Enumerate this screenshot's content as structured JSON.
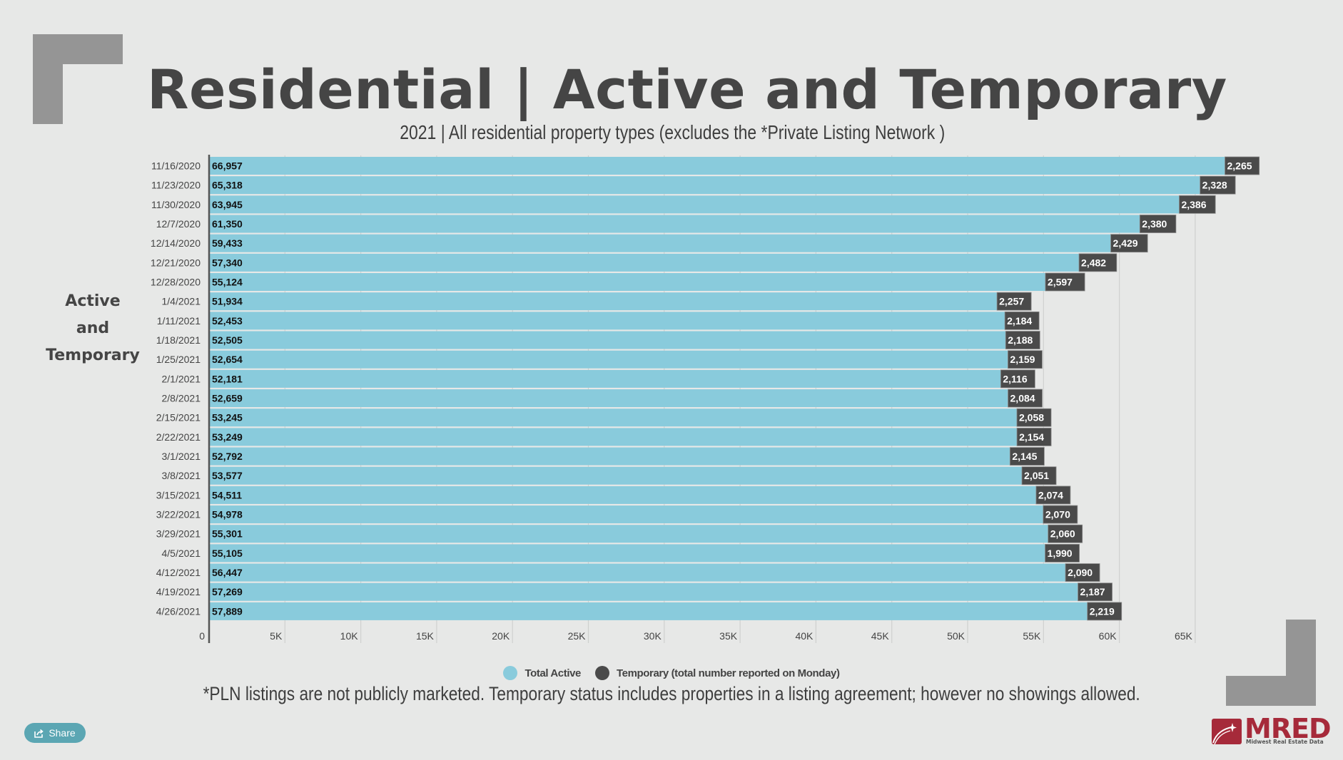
{
  "header": {
    "title": "Residential | Active and Temporary",
    "subtitle": "2021 | All residential property types (excludes the *Private Listing Network )"
  },
  "side_label": {
    "lines": [
      "Active",
      "and",
      "Temporary"
    ]
  },
  "footnote": "*PLN listings are not publicly marketed. Temporary status includes properties in a listing agreement; however no showings allowed.",
  "share": {
    "label": "Share",
    "icon": "share-icon"
  },
  "logo": {
    "name": "MRED",
    "tagline": "Midwest Real Estate Data"
  },
  "colors": {
    "background": "#e7e8e7",
    "active": "#89cbdc",
    "temporary": "#4a4a4a",
    "brand_red": "#a62a3a",
    "bracket": "#959595",
    "share_button": "#5ba6b3"
  },
  "chart_data": {
    "type": "bar",
    "orientation": "horizontal",
    "stacked": true,
    "title": "Residential | Active and Temporary",
    "subtitle": "2021 | All residential property types (excludes the *Private Listing Network )",
    "xlabel": "",
    "ylabel": "Active and Temporary",
    "xlim": [
      0,
      70000
    ],
    "x_ticks": [
      0,
      5000,
      10000,
      15000,
      20000,
      25000,
      30000,
      35000,
      40000,
      45000,
      50000,
      55000,
      60000,
      65000
    ],
    "x_tick_labels": [
      "0",
      "5K",
      "10K",
      "15K",
      "20K",
      "25K",
      "30K",
      "35K",
      "40K",
      "45K",
      "50K",
      "55K",
      "60K",
      "65K"
    ],
    "grid": "vertical",
    "legend_position": "bottom",
    "categories": [
      "11/16/2020",
      "11/23/2020",
      "11/30/2020",
      "12/7/2020",
      "12/14/2020",
      "12/21/2020",
      "12/28/2020",
      "1/4/2021",
      "1/11/2021",
      "1/18/2021",
      "1/25/2021",
      "2/1/2021",
      "2/8/2021",
      "2/15/2021",
      "2/22/2021",
      "3/1/2021",
      "3/8/2021",
      "3/15/2021",
      "3/22/2021",
      "3/29/2021",
      "4/5/2021",
      "4/12/2021",
      "4/19/2021",
      "4/26/2021"
    ],
    "series": [
      {
        "name": "Total Active",
        "color": "#89cbdc",
        "values": [
          66957,
          65318,
          63945,
          61350,
          59433,
          57340,
          55124,
          51934,
          52453,
          52505,
          52654,
          52181,
          52659,
          53245,
          53249,
          52792,
          53577,
          54511,
          54978,
          55301,
          55105,
          56447,
          57269,
          57889
        ]
      },
      {
        "name": "Temporary (total number reported on Monday)",
        "color": "#4a4a4a",
        "values": [
          2265,
          2328,
          2386,
          2380,
          2429,
          2482,
          2597,
          2257,
          2184,
          2188,
          2159,
          2116,
          2084,
          2058,
          2154,
          2145,
          2051,
          2074,
          2070,
          2060,
          1990,
          2090,
          2187,
          2219
        ]
      }
    ]
  }
}
